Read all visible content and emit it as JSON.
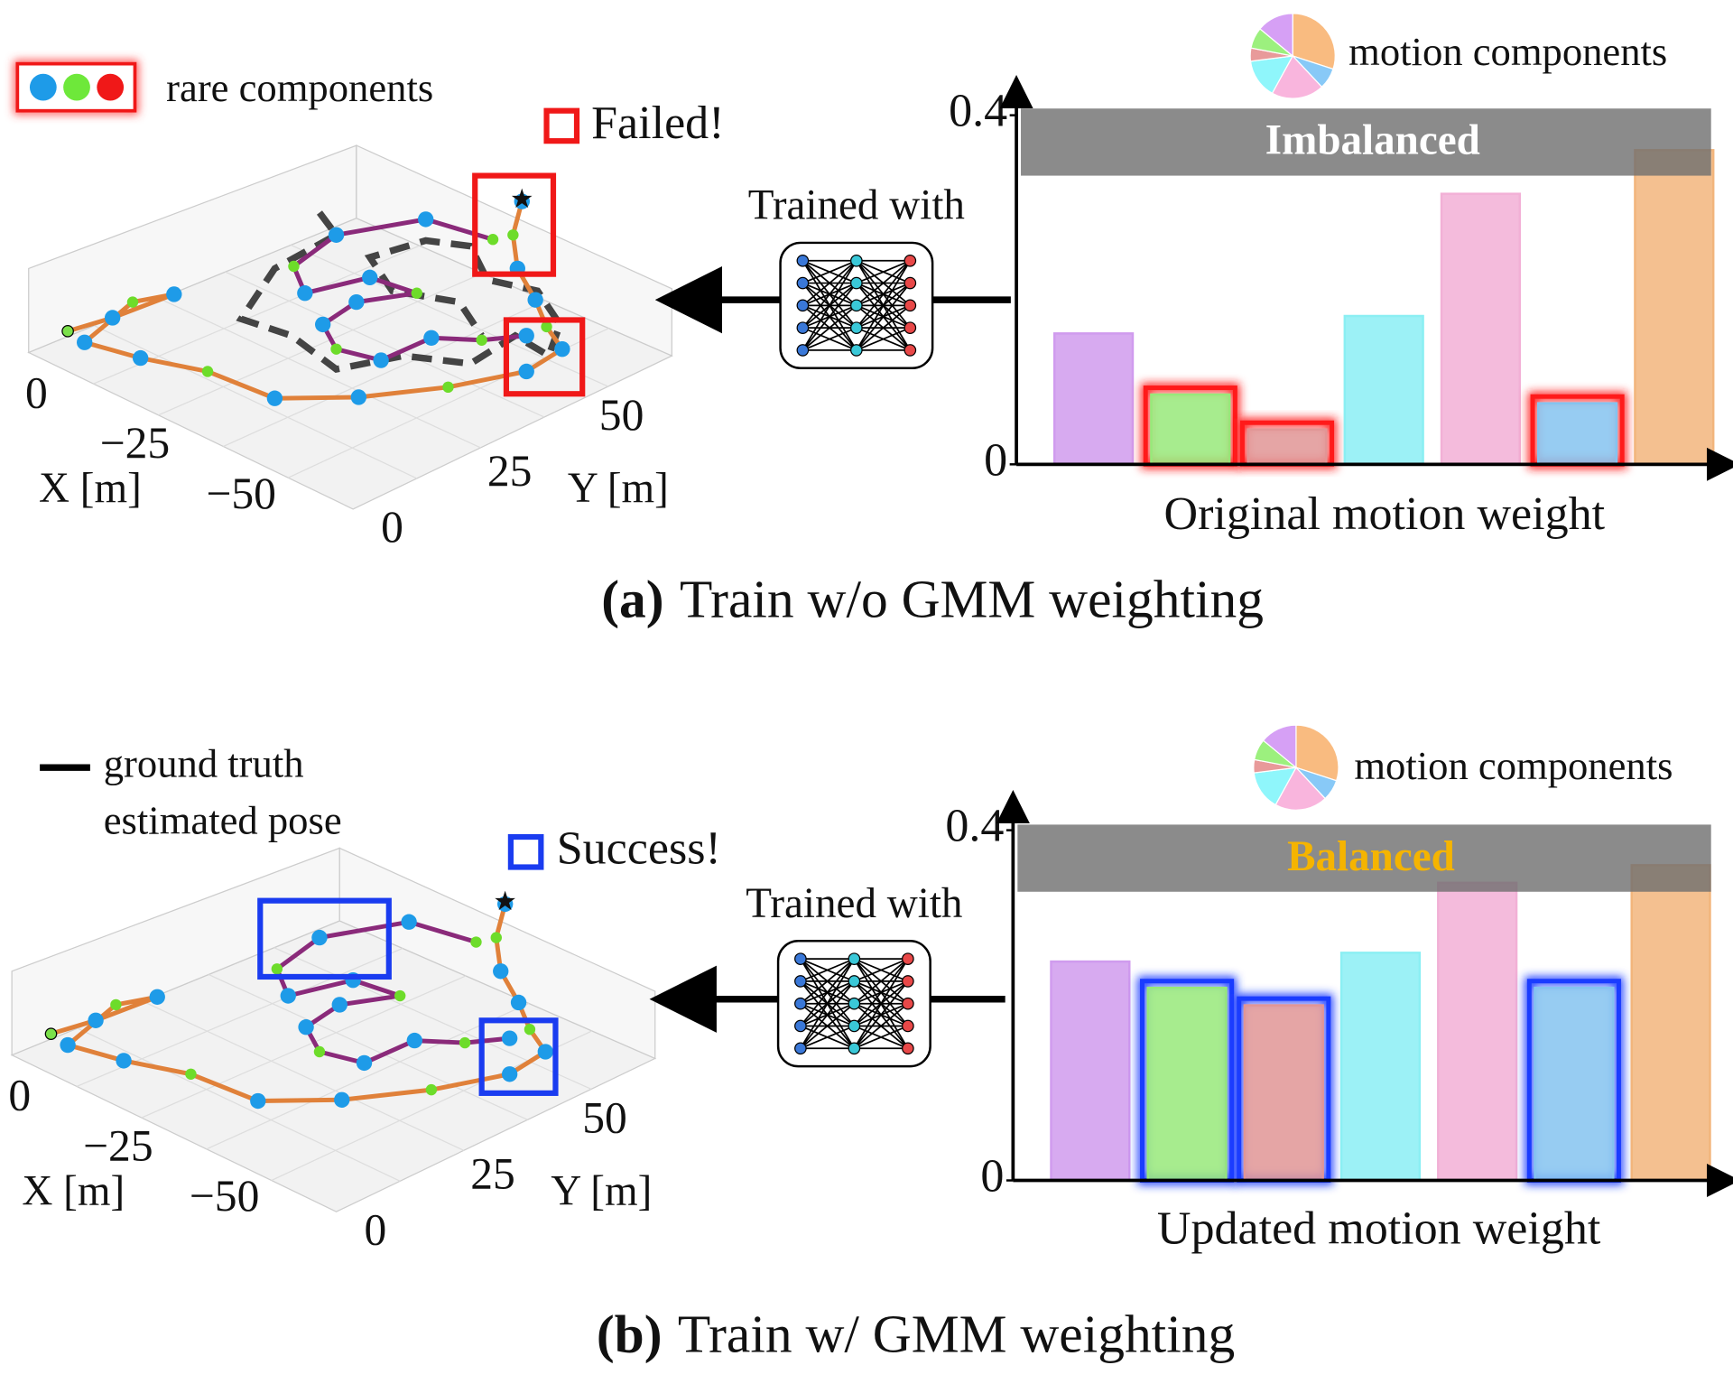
{
  "panels": [
    {
      "caption_label": "(a)",
      "caption": "Train w/o GMM weighting",
      "legend": [
        "rare components"
      ],
      "status": "Failed!",
      "arrow_label": "Trained with",
      "plot3d": {
        "xlabel": "X [m]",
        "ylabel": "Y [m]",
        "xticks": [
          {
            "value": 0,
            "label": "0"
          },
          {
            "value": -25,
            "label": "−25"
          },
          {
            "value": -50,
            "label": "−50"
          }
        ],
        "yticks": [
          0,
          25,
          50
        ]
      }
    },
    {
      "caption_label": "(b)",
      "caption": "Train w/ GMM weighting",
      "legend": [
        "ground truth",
        "estimated pose"
      ],
      "status": "Success!",
      "arrow_label": "Trained with",
      "plot3d": {
        "xlabel": "X [m]",
        "ylabel": "Y [m]",
        "xticks": [
          {
            "value": 0,
            "label": "0"
          },
          {
            "value": -25,
            "label": "−25"
          },
          {
            "value": -50,
            "label": "−50"
          }
        ],
        "yticks": [
          0,
          25,
          50
        ]
      }
    }
  ],
  "chart_data": [
    {
      "type": "bar",
      "xlabel": "Original motion weight",
      "legend_label": "motion components",
      "banner": "Imbalanced",
      "banner_color": "#ffffff",
      "categories": [
        null,
        null,
        null,
        null,
        null,
        null,
        null
      ],
      "values": [
        0.15,
        0.08,
        0.04,
        0.17,
        0.31,
        0.07,
        0.36
      ],
      "colors": [
        "#d6a0f5",
        "#9cf07e",
        "#e89a9a",
        "#8ff6fb",
        "#f9b5dd",
        "#88c9f7",
        "#f9bb80"
      ],
      "highlight": [
        false,
        true,
        true,
        false,
        false,
        true,
        false
      ],
      "highlight_color": "#ff1a1a",
      "ylim": [
        0,
        0.4
      ],
      "yticks": [
        0,
        0.4
      ]
    },
    {
      "type": "bar",
      "xlabel": "Updated motion weight",
      "legend_label": "motion components",
      "banner": "Balanced",
      "banner_color": "#f5b400",
      "categories": [
        null,
        null,
        null,
        null,
        null,
        null,
        null
      ],
      "values": [
        0.25,
        0.22,
        0.2,
        0.26,
        0.34,
        0.22,
        0.36
      ],
      "colors": [
        "#d6a0f5",
        "#9cf07e",
        "#e89a9a",
        "#8ff6fb",
        "#f9b5dd",
        "#88c9f7",
        "#f9bb80"
      ],
      "highlight": [
        false,
        true,
        true,
        false,
        false,
        true,
        false
      ],
      "highlight_color": "#1a3cff",
      "ylim": [
        0,
        0.4
      ],
      "yticks": [
        0,
        0.4
      ]
    }
  ]
}
